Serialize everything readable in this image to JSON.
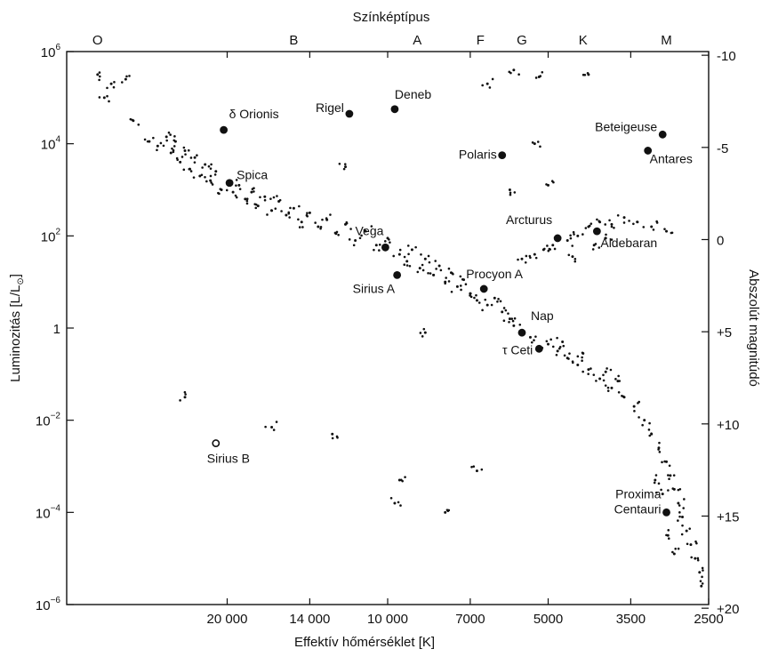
{
  "chart_data": {
    "type": "scatter",
    "title": "",
    "top_axis": {
      "title": "Színképtípus",
      "classes": [
        {
          "label": "O",
          "at": 35000
        },
        {
          "label": "B",
          "at": 15000
        },
        {
          "label": "A",
          "at": 8800
        },
        {
          "label": "F",
          "at": 6700
        },
        {
          "label": "G",
          "at": 5600
        },
        {
          "label": "K",
          "at": 4300
        },
        {
          "label": "M",
          "at": 3000
        }
      ]
    },
    "x_axis": {
      "title": "Effektív hőmérséklet [K]",
      "scale": "log",
      "reversed": true,
      "range": [
        40000,
        2500
      ],
      "ticks": [
        {
          "value": 20000,
          "label": "20 000"
        },
        {
          "value": 14000,
          "label": "14 000"
        },
        {
          "value": 10000,
          "label": "10 000"
        },
        {
          "value": 7000,
          "label": "7000"
        },
        {
          "value": 5000,
          "label": "5000"
        },
        {
          "value": 3500,
          "label": "3500"
        },
        {
          "value": 2500,
          "label": "2500"
        }
      ]
    },
    "y_axis_left": {
      "title_main": "Luminozitás [L/L",
      "title_sub": "⊙",
      "title_end": "]",
      "scale": "log",
      "range": [
        1e-06,
        1000000.0
      ],
      "ticks": [
        {
          "exp": -6,
          "base": "10",
          "sup": "−6"
        },
        {
          "exp": -4,
          "base": "10",
          "sup": "−4"
        },
        {
          "exp": -2,
          "base": "10",
          "sup": "−2"
        },
        {
          "exp": 0,
          "base": "1",
          "sup": ""
        },
        {
          "exp": 2,
          "base": "10",
          "sup": "2"
        },
        {
          "exp": 4,
          "base": "10",
          "sup": "4"
        },
        {
          "exp": 6,
          "base": "10",
          "sup": "6"
        }
      ]
    },
    "y_axis_right": {
      "title": "Abszolút magnitúdó",
      "ticks": [
        {
          "mag": -10,
          "label": "-10"
        },
        {
          "mag": -5,
          "label": "-5"
        },
        {
          "mag": 0,
          "label": "0"
        },
        {
          "mag": 5,
          "label": "+5"
        },
        {
          "mag": 10,
          "label": "+10"
        },
        {
          "mag": 15,
          "label": "+15"
        },
        {
          "mag": 20,
          "label": "+20"
        }
      ]
    },
    "named_stars": [
      {
        "name": "δ Orionis",
        "T": 20300,
        "logL": 4.3,
        "style": "filled"
      },
      {
        "name": "Rigel",
        "T": 11800,
        "logL": 4.65,
        "style": "filled"
      },
      {
        "name": "Deneb",
        "T": 9700,
        "logL": 4.75,
        "style": "filled"
      },
      {
        "name": "Polaris",
        "T": 6100,
        "logL": 3.75,
        "style": "filled"
      },
      {
        "name": "Beteigeuse",
        "T": 3050,
        "logL": 4.2,
        "style": "filled"
      },
      {
        "name": "Antares",
        "T": 3250,
        "logL": 3.85,
        "style": "filled"
      },
      {
        "name": "Spica",
        "T": 19800,
        "logL": 3.15,
        "style": "filled"
      },
      {
        "name": "Vega",
        "T": 10100,
        "logL": 1.75,
        "style": "filled"
      },
      {
        "name": "Sirius A",
        "T": 9600,
        "logL": 1.15,
        "style": "filled"
      },
      {
        "name": "Arcturus",
        "T": 4800,
        "logL": 1.95,
        "style": "filled"
      },
      {
        "name": "Aldebaran",
        "T": 4050,
        "logL": 2.1,
        "style": "filled"
      },
      {
        "name": "Procyon A",
        "T": 6600,
        "logL": 0.85,
        "style": "filled"
      },
      {
        "name": "Nap",
        "T": 5600,
        "logL": -0.1,
        "style": "filled"
      },
      {
        "name": "τ Ceti",
        "T": 5200,
        "logL": -0.45,
        "style": "filled"
      },
      {
        "name": "Sirius B",
        "T": 21000,
        "logL": -2.5,
        "style": "open"
      },
      {
        "name": "Proxima Centauri",
        "T": 3000,
        "logL": -4.0,
        "style": "filled"
      }
    ],
    "field_stars": [
      {
        "T": 35000,
        "logL": 5.5
      },
      {
        "T": 33000,
        "logL": 5.3
      },
      {
        "T": 31000,
        "logL": 5.4
      },
      {
        "T": 34000,
        "logL": 5.0
      },
      {
        "T": 30000,
        "logL": 4.5
      },
      {
        "T": 28000,
        "logL": 4.05
      },
      {
        "T": 27000,
        "logL": 3.95
      },
      {
        "T": 26000,
        "logL": 4.15
      },
      {
        "T": 25500,
        "logL": 3.8
      },
      {
        "T": 25000,
        "logL": 4.05
      },
      {
        "T": 24500,
        "logL": 3.6
      },
      {
        "T": 24000,
        "logL": 3.85
      },
      {
        "T": 23500,
        "logL": 3.45
      },
      {
        "T": 23000,
        "logL": 3.7
      },
      {
        "T": 22500,
        "logL": 3.3
      },
      {
        "T": 22000,
        "logL": 3.55
      },
      {
        "T": 21500,
        "logL": 3.2
      },
      {
        "T": 21000,
        "logL": 3.4
      },
      {
        "T": 20500,
        "logL": 3.0
      },
      {
        "T": 19500,
        "logL": 2.95
      },
      {
        "T": 19000,
        "logL": 3.1
      },
      {
        "T": 18500,
        "logL": 2.8
      },
      {
        "T": 18000,
        "logL": 2.95
      },
      {
        "T": 17500,
        "logL": 2.65
      },
      {
        "T": 17000,
        "logL": 2.85
      },
      {
        "T": 16500,
        "logL": 2.55
      },
      {
        "T": 16000,
        "logL": 2.75
      },
      {
        "T": 15500,
        "logL": 2.45
      },
      {
        "T": 15000,
        "logL": 2.6
      },
      {
        "T": 14500,
        "logL": 2.3
      },
      {
        "T": 14000,
        "logL": 2.5
      },
      {
        "T": 13500,
        "logL": 2.2
      },
      {
        "T": 13000,
        "logL": 2.35
      },
      {
        "T": 12500,
        "logL": 2.05
      },
      {
        "T": 12000,
        "logL": 2.25
      },
      {
        "T": 11500,
        "logL": 1.9
      },
      {
        "T": 11000,
        "logL": 2.1
      },
      {
        "T": 10500,
        "logL": 1.8
      },
      {
        "T": 10000,
        "logL": 1.95
      },
      {
        "T": 9500,
        "logL": 1.6
      },
      {
        "T": 9200,
        "logL": 1.45
      },
      {
        "T": 9000,
        "logL": 1.7
      },
      {
        "T": 8700,
        "logL": 1.3
      },
      {
        "T": 8500,
        "logL": 1.5
      },
      {
        "T": 8200,
        "logL": 1.15
      },
      {
        "T": 8000,
        "logL": 1.35
      },
      {
        "T": 7800,
        "logL": 1.0
      },
      {
        "T": 7600,
        "logL": 1.2
      },
      {
        "T": 7400,
        "logL": 0.9
      },
      {
        "T": 7200,
        "logL": 1.05
      },
      {
        "T": 7000,
        "logL": 0.75
      },
      {
        "T": 6800,
        "logL": 0.6
      },
      {
        "T": 6500,
        "logL": 0.5
      },
      {
        "T": 6300,
        "logL": 0.65
      },
      {
        "T": 6100,
        "logL": 0.35
      },
      {
        "T": 5900,
        "logL": 0.2
      },
      {
        "T": 5800,
        "logL": 0.05
      },
      {
        "T": 5400,
        "logL": -0.2
      },
      {
        "T": 5000,
        "logL": -0.35
      },
      {
        "T": 4800,
        "logL": -0.5
      },
      {
        "T": 4600,
        "logL": -0.65
      },
      {
        "T": 4400,
        "logL": -0.8
      },
      {
        "T": 4200,
        "logL": -0.9
      },
      {
        "T": 4000,
        "logL": -1.1
      },
      {
        "T": 3800,
        "logL": -1.3
      },
      {
        "T": 3600,
        "logL": -1.5
      },
      {
        "T": 3450,
        "logL": -1.7
      },
      {
        "T": 3300,
        "logL": -2.0
      },
      {
        "T": 3200,
        "logL": -2.3
      },
      {
        "T": 3100,
        "logL": -2.6
      },
      {
        "T": 3000,
        "logL": -2.9
      },
      {
        "T": 2950,
        "logL": -3.2
      },
      {
        "T": 2900,
        "logL": -3.5
      },
      {
        "T": 2850,
        "logL": -3.8
      },
      {
        "T": 2800,
        "logL": -4.1
      },
      {
        "T": 2750,
        "logL": -4.4
      },
      {
        "T": 2700,
        "logL": -4.7
      },
      {
        "T": 2650,
        "logL": -5.0
      },
      {
        "T": 2600,
        "logL": -5.3
      },
      {
        "T": 2580,
        "logL": -5.6
      },
      {
        "T": 3150,
        "logL": -3.3
      },
      {
        "T": 3050,
        "logL": -3.6
      },
      {
        "T": 2980,
        "logL": -4.5
      },
      {
        "T": 2900,
        "logL": -4.9
      },
      {
        "T": 4700,
        "logL": -0.3
      },
      {
        "T": 4300,
        "logL": -0.55
      },
      {
        "T": 3900,
        "logL": -0.95
      },
      {
        "T": 3700,
        "logL": -1.15
      },
      {
        "T": 5600,
        "logL": 1.5
      },
      {
        "T": 5300,
        "logL": 1.6
      },
      {
        "T": 5100,
        "logL": 1.7
      },
      {
        "T": 4900,
        "logL": 1.8
      },
      {
        "T": 4600,
        "logL": 1.9
      },
      {
        "T": 4400,
        "logL": 2.0
      },
      {
        "T": 4200,
        "logL": 2.2
      },
      {
        "T": 4000,
        "logL": 2.3
      },
      {
        "T": 3800,
        "logL": 2.25
      },
      {
        "T": 3600,
        "logL": 2.4
      },
      {
        "T": 3400,
        "logL": 2.3
      },
      {
        "T": 3200,
        "logL": 2.2
      },
      {
        "T": 3000,
        "logL": 2.1
      },
      {
        "T": 4500,
        "logL": 1.55
      },
      {
        "T": 4100,
        "logL": 1.8
      },
      {
        "T": 3900,
        "logL": 1.95
      },
      {
        "T": 5800,
        "logL": 5.6
      },
      {
        "T": 5200,
        "logL": 5.45
      },
      {
        "T": 4200,
        "logL": 5.5
      },
      {
        "T": 6500,
        "logL": 5.3
      },
      {
        "T": 5300,
        "logL": 4.0
      },
      {
        "T": 5000,
        "logL": 3.1
      },
      {
        "T": 5900,
        "logL": 3.0
      },
      {
        "T": 6800,
        "logL": -3.1
      },
      {
        "T": 7800,
        "logL": -4.0
      },
      {
        "T": 9500,
        "logL": -3.3
      },
      {
        "T": 9700,
        "logL": -3.8
      },
      {
        "T": 12700,
        "logL": -2.3
      },
      {
        "T": 16500,
        "logL": -2.15
      },
      {
        "T": 24000,
        "logL": -1.5
      },
      {
        "T": 8500,
        "logL": -0.1
      },
      {
        "T": 12000,
        "logL": 3.5
      }
    ],
    "grid": false,
    "legend": "none"
  }
}
